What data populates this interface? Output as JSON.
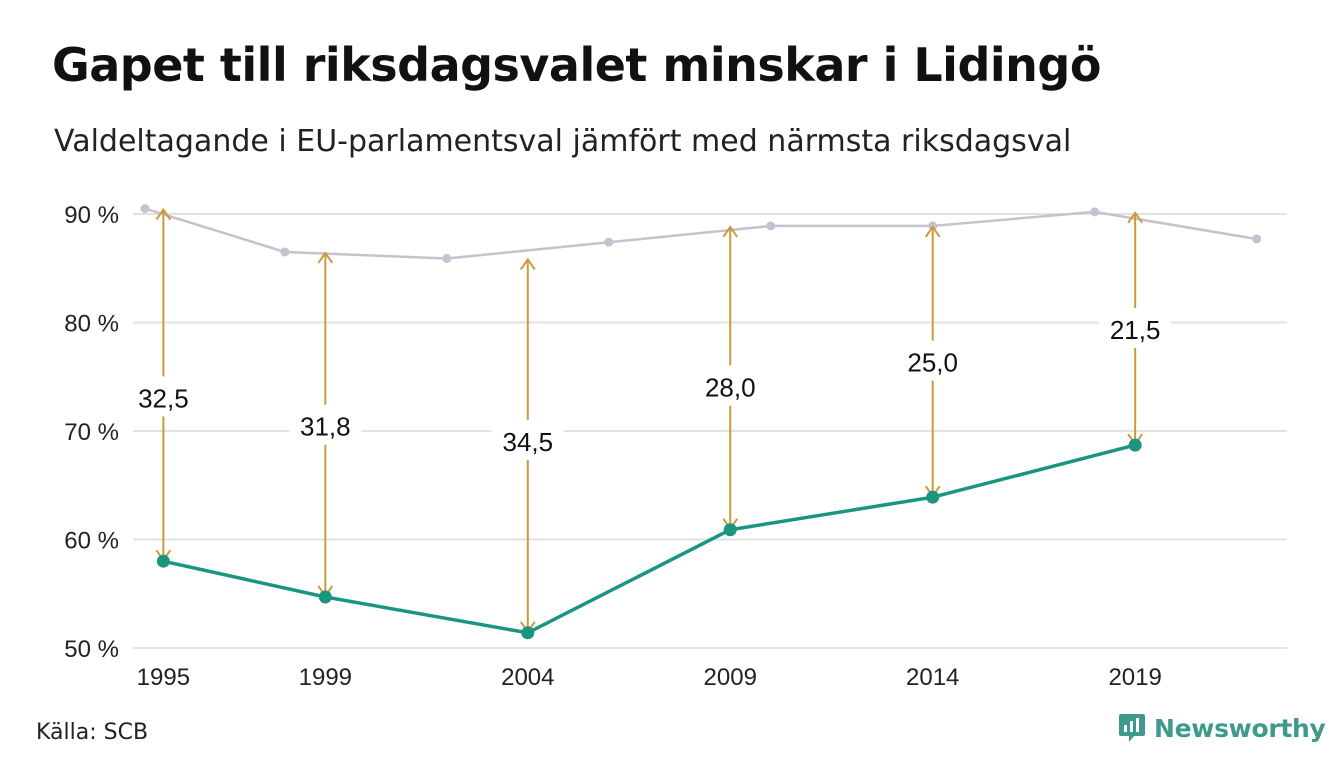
{
  "title": "Gapet till riksdagsvalet minskar i Lidingö",
  "subtitle": "Valdeltagande i EU-parlamentsval jämfört med närmsta riksdagsval",
  "source": "Källa: SCB",
  "brand": "Newsworthy",
  "colors": {
    "eu_line": "#1a9580",
    "riksdag_line": "#c5c1cf",
    "gap_arrow": "#c99b3d",
    "grid": "#e2e2e2",
    "brand": "#3e9a8c"
  },
  "chart_data": {
    "type": "line",
    "title": "Gapet till riksdagsvalet minskar i Lidingö",
    "subtitle": "Valdeltagande i EU-parlamentsval jämfört med närmsta riksdagsval",
    "ylim": [
      50,
      90
    ],
    "xlim": [
      1994.25,
      2022.75
    ],
    "yticks": [
      50,
      60,
      70,
      80,
      90
    ],
    "ytick_labels": [
      "50 %",
      "60 %",
      "70 %",
      "80 %",
      "90 %"
    ],
    "xticks": [
      1995,
      1999,
      2004,
      2009,
      2014,
      2019
    ],
    "xtick_labels": [
      "1995",
      "1999",
      "2004",
      "2009",
      "2014",
      "2019"
    ],
    "grid": true,
    "series": [
      {
        "role": "riksdag",
        "x": [
          1994,
          1998,
          2002,
          2006,
          2010,
          2014,
          2018,
          2022
        ],
        "y": [
          90.5,
          86.5,
          85.9,
          87.4,
          88.9,
          88.9,
          90.2,
          87.7
        ]
      },
      {
        "role": "eu",
        "x": [
          1995,
          1999,
          2004,
          2009,
          2014,
          2019
        ],
        "y": [
          58.0,
          54.7,
          51.4,
          60.9,
          63.9,
          68.7
        ]
      }
    ],
    "gaps": [
      {
        "x": 1995,
        "from": 58.0,
        "to": 90.5,
        "label": "32,5",
        "label_y": 73.0
      },
      {
        "x": 1999,
        "from": 54.7,
        "to": 86.5,
        "label": "31,8",
        "label_y": 70.4
      },
      {
        "x": 2004,
        "from": 51.4,
        "to": 85.9,
        "label": "34,5",
        "label_y": 69.0
      },
      {
        "x": 2009,
        "from": 60.9,
        "to": 88.9,
        "label": "28,0",
        "label_y": 74.0
      },
      {
        "x": 2014,
        "from": 63.9,
        "to": 88.9,
        "label": "25,0",
        "label_y": 76.3
      },
      {
        "x": 2019,
        "from": 68.7,
        "to": 90.2,
        "label": "21,5",
        "label_y": 79.3
      }
    ]
  }
}
